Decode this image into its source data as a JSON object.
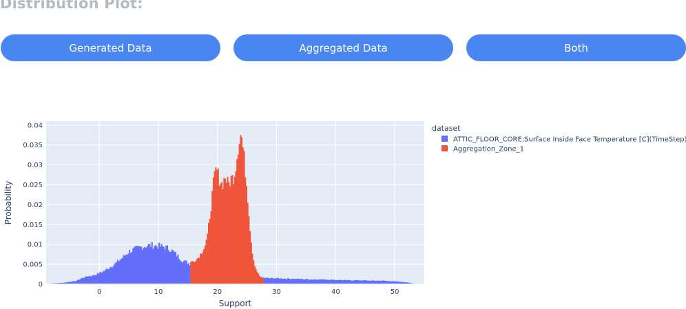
{
  "page": {
    "title": "Distribution Plot:"
  },
  "buttons": {
    "generated_label": "Generated Data",
    "aggregated_label": "Aggregated Data",
    "both_label": "Both"
  },
  "colors": {
    "button_bg": "#4a86f0",
    "plot_bg": "#e5ecf6",
    "series_generated": "#636efa",
    "series_aggregated": "#ef553b"
  },
  "chart_data": {
    "type": "histogram",
    "xlabel": "Support",
    "ylabel": "Probability",
    "xlim": [
      -9,
      55
    ],
    "ylim": [
      0,
      0.041
    ],
    "x_ticks": [
      0,
      10,
      20,
      30,
      40,
      50
    ],
    "x_tick_labels": [
      "0",
      "10",
      "20",
      "30",
      "40",
      "50"
    ],
    "y_ticks": [
      0,
      0.005,
      0.01,
      0.015,
      0.02,
      0.025,
      0.03,
      0.035,
      0.04
    ],
    "y_tick_labels": [
      "0",
      "0.005",
      "0.01",
      "0.015",
      "0.02",
      "0.025",
      "0.03",
      "0.035",
      "0.04"
    ],
    "grid": true,
    "legend_title": "dataset",
    "legend_placement": "top-right outside",
    "bin_width": 0.2,
    "series": [
      {
        "name": "ATTIC_FLOOR_CORE:Surface Inside Face Temperature [C](TimeStep)",
        "color": "#636efa",
        "x": [
          -9,
          -8,
          -7,
          -6,
          -5,
          -4,
          -3,
          -2,
          -1,
          0,
          1,
          2,
          3,
          4,
          5,
          6,
          7,
          8,
          9,
          10,
          11,
          12,
          13,
          14,
          15,
          16,
          17,
          18,
          19,
          20,
          21,
          22,
          23,
          24,
          25,
          26,
          27,
          28,
          29,
          30,
          32,
          34,
          36,
          38,
          40,
          42,
          44,
          46,
          48,
          50,
          51,
          52,
          53,
          54,
          55
        ],
        "values": [
          0,
          0.0002,
          0.0003,
          0.0004,
          0.0006,
          0.0008,
          0.0015,
          0.002,
          0.0022,
          0.0028,
          0.0035,
          0.0045,
          0.0055,
          0.0068,
          0.0082,
          0.0088,
          0.0093,
          0.0097,
          0.0098,
          0.0096,
          0.0094,
          0.0088,
          0.0075,
          0.006,
          0.0054,
          0.0045,
          0.0035,
          0.0028,
          0.0025,
          0.0022,
          0.0021,
          0.002,
          0.0019,
          0.0019,
          0.0018,
          0.0018,
          0.0017,
          0.0016,
          0.0015,
          0.0015,
          0.0014,
          0.0013,
          0.0012,
          0.0012,
          0.0011,
          0.001,
          0.001,
          0.0009,
          0.0009,
          0.0007,
          0.0006,
          0.0005,
          0.0002,
          0.0001,
          0
        ]
      },
      {
        "name": "Aggregation_Zone_1",
        "color": "#ef553b",
        "x": [
          15.4,
          16,
          16.6,
          17.2,
          17.8,
          18.3,
          18.6,
          19.0,
          19.4,
          19.8,
          20.3,
          20.8,
          21.3,
          21.8,
          22.3,
          22.8,
          23.2,
          23.6,
          24.0,
          24.4,
          24.8,
          25.2,
          25.6,
          26.0,
          26.4,
          26.8,
          27.2,
          27.6
        ],
        "values": [
          0.0055,
          0.0058,
          0.0065,
          0.0078,
          0.0093,
          0.012,
          0.016,
          0.021,
          0.0265,
          0.029,
          0.0265,
          0.025,
          0.027,
          0.025,
          0.0265,
          0.027,
          0.031,
          0.036,
          0.038,
          0.033,
          0.027,
          0.02,
          0.012,
          0.0068,
          0.0042,
          0.0028,
          0.0019,
          0.0015
        ]
      }
    ]
  }
}
